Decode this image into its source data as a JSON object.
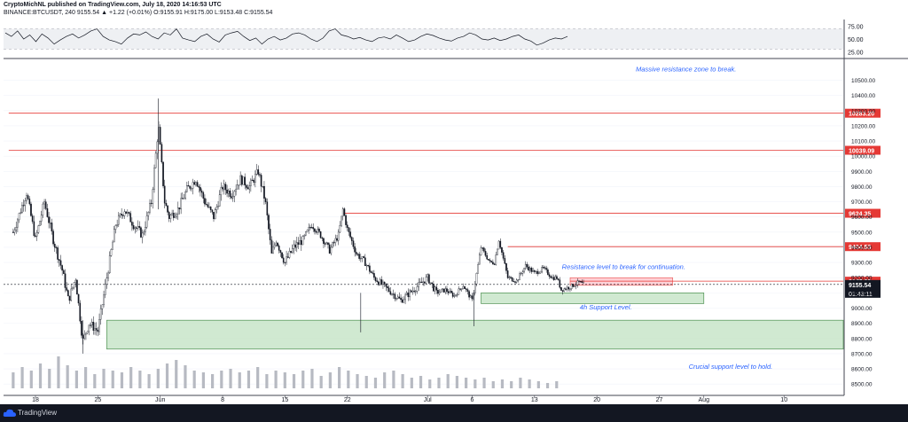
{
  "header": {
    "line1": "CryptoMichNL published on TradingView.com, July 18, 2020 14:16:53 UTC",
    "line2": "BINANCE:BTCUSDT, 240 9155.54 ▲ +1.22 (+0.01%) O:9155.91 H:9175.00 L:9153.48 C:9155.54"
  },
  "footer": {
    "brand": "TradingView"
  },
  "colors": {
    "up": "#ffffff",
    "down": "#131722",
    "resistance": "#e53935",
    "support_fill": "#c8e6c9",
    "support_stroke": "#2e7d32",
    "annotation": "#2962ff",
    "rsi_band": "#eef0f3"
  },
  "chart_data": {
    "type": "candlestick",
    "symbol": "BINANCE:BTCUSDT",
    "interval": "240",
    "ylim": [
      8460,
      10620
    ],
    "y_ticks": [
      8500,
      8600,
      8700,
      8800,
      8900,
      9000,
      9100,
      9200,
      9300,
      9400,
      9500,
      9600,
      9700,
      9800,
      9900,
      10000,
      10100,
      10200,
      10300,
      10400,
      10500
    ],
    "x_ticks": [
      {
        "label": "18",
        "day": 0
      },
      {
        "label": "25",
        "day": 7
      },
      {
        "label": "Jun",
        "day": 14
      },
      {
        "label": "8",
        "day": 21
      },
      {
        "label": "15",
        "day": 28
      },
      {
        "label": "22",
        "day": 35
      },
      {
        "label": "Jul",
        "day": 44
      },
      {
        "label": "6",
        "day": 49
      },
      {
        "label": "13",
        "day": 56
      },
      {
        "label": "20",
        "day": 63
      },
      {
        "label": "27",
        "day": 70
      },
      {
        "label": "Aug",
        "day": 75
      },
      {
        "label": "10",
        "day": 84
      },
      {
        "label": "17",
        "day": 91
      }
    ],
    "close_path": [
      [
        -2.5,
        9500
      ],
      [
        -1,
        9760
      ],
      [
        0,
        9450
      ],
      [
        1,
        9700
      ],
      [
        2,
        9450
      ],
      [
        3,
        9250
      ],
      [
        3.7,
        9050
      ],
      [
        4.5,
        9200
      ],
      [
        5.3,
        8780
      ],
      [
        6,
        8900
      ],
      [
        7,
        8850
      ],
      [
        8,
        9200
      ],
      [
        9,
        9550
      ],
      [
        10,
        9650
      ],
      [
        11,
        9550
      ],
      [
        12,
        9480
      ],
      [
        13,
        9700
      ],
      [
        13.8,
        10200
      ],
      [
        14.5,
        9700
      ],
      [
        15,
        9600
      ],
      [
        16,
        9650
      ],
      [
        17,
        9780
      ],
      [
        18,
        9850
      ],
      [
        19,
        9700
      ],
      [
        20,
        9600
      ],
      [
        21,
        9800
      ],
      [
        22,
        9750
      ],
      [
        23,
        9850
      ],
      [
        24,
        9800
      ],
      [
        25,
        9900
      ],
      [
        25.8,
        9700
      ],
      [
        26.5,
        9350
      ],
      [
        27,
        9450
      ],
      [
        28,
        9300
      ],
      [
        29,
        9400
      ],
      [
        30,
        9450
      ],
      [
        31,
        9550
      ],
      [
        32,
        9480
      ],
      [
        33,
        9380
      ],
      [
        34,
        9480
      ],
      [
        34.5,
        9650
      ],
      [
        35,
        9520
      ],
      [
        36,
        9360
      ],
      [
        37,
        9300
      ],
      [
        38,
        9200
      ],
      [
        39,
        9150
      ],
      [
        40,
        9100
      ],
      [
        41,
        9050
      ],
      [
        42,
        9100
      ],
      [
        43,
        9150
      ],
      [
        44,
        9200
      ],
      [
        45,
        9100
      ],
      [
        46,
        9120
      ],
      [
        47,
        9080
      ],
      [
        48,
        9150
      ],
      [
        49,
        9050
      ],
      [
        50,
        9400
      ],
      [
        51,
        9300
      ],
      [
        51.5,
        9300
      ],
      [
        52,
        9450
      ],
      [
        53,
        9200
      ],
      [
        54,
        9180
      ],
      [
        55,
        9280
      ],
      [
        56,
        9230
      ],
      [
        57,
        9260
      ],
      [
        58,
        9200
      ],
      [
        58.5,
        9200
      ],
      [
        59,
        9120
      ],
      [
        60,
        9140
      ],
      [
        61,
        9170
      ],
      [
        61.5,
        9155
      ]
    ],
    "volume_relative": [
      0.45,
      0.6,
      0.5,
      0.7,
      0.55,
      0.9,
      0.65,
      0.5,
      0.6,
      0.4,
      0.55,
      0.5,
      0.45,
      0.6,
      0.5,
      0.4,
      0.55,
      0.7,
      0.8,
      0.65,
      0.5,
      0.45,
      0.4,
      0.5,
      0.55,
      0.45,
      0.5,
      0.6,
      0.4,
      0.5,
      0.45,
      0.4,
      0.5,
      0.55,
      0.35,
      0.45,
      0.6,
      0.5,
      0.4,
      0.35,
      0.3,
      0.45,
      0.5,
      0.4,
      0.3,
      0.35,
      0.25,
      0.3,
      0.4,
      0.35,
      0.3,
      0.25,
      0.3,
      0.2,
      0.25,
      0.2,
      0.3,
      0.25,
      0.2,
      0.15,
      0.2
    ],
    "resistance_lines": [
      {
        "price": 10283.2,
        "label": "10283.20",
        "from_day": -3
      },
      {
        "price": 10039.09,
        "label": "10039.09",
        "from_day": -3
      },
      {
        "price": 9624.35,
        "label": "9624.35",
        "from_day": 34.5
      },
      {
        "price": 9404.53,
        "label": "9404.53",
        "from_day": 53
      },
      {
        "price": 9177.23,
        "label": "9177.23",
        "from_day": 60
      }
    ],
    "current_price": {
      "price": 9155.54,
      "label": "9155.54",
      "countdown": "01:43:11"
    },
    "resistance_box": {
      "x0": 60,
      "x1": 71.5,
      "y0": 9150,
      "y1": 9200
    },
    "support_boxes": [
      {
        "x0": 50,
        "x1": 75,
        "y0": 9030,
        "y1": 9100
      },
      {
        "x0": 8,
        "x1": 96,
        "y0": 8730,
        "y1": 8920
      }
    ],
    "annotations": [
      {
        "text": "Massive resistance zone to break.",
        "day": 73,
        "price": 10560
      },
      {
        "text": "Resistance level to break for continuation.",
        "day": 66,
        "price": 9258
      },
      {
        "text": "4h Support Level.",
        "day": 64,
        "price": 8990
      },
      {
        "text": "Crucial support level to hold.",
        "day": 78,
        "price": 8600
      }
    ],
    "rsi": {
      "ticks": [
        25,
        50,
        75
      ],
      "tick_labels": [
        "25.00",
        "50.00",
        "75.00"
      ],
      "band": [
        30,
        70
      ],
      "values": [
        62,
        55,
        66,
        50,
        58,
        45,
        60,
        52,
        40,
        48,
        55,
        60,
        52,
        58,
        66,
        70,
        55,
        48,
        45,
        40,
        52,
        60,
        58,
        64,
        55,
        50,
        62,
        58,
        70,
        52,
        48,
        45,
        55,
        60,
        50,
        44,
        58,
        62,
        65,
        55,
        47,
        52,
        40,
        50,
        55,
        48,
        52,
        60,
        62,
        58,
        50,
        45,
        52,
        66,
        70,
        58,
        55,
        50,
        53,
        48,
        45,
        52,
        54,
        50,
        58,
        52,
        45,
        48,
        55,
        60,
        57,
        52,
        48,
        46,
        52,
        55,
        62,
        58,
        50,
        48,
        52,
        47,
        50,
        55,
        58,
        50,
        46,
        38,
        42,
        48,
        52,
        50,
        55
      ]
    }
  }
}
